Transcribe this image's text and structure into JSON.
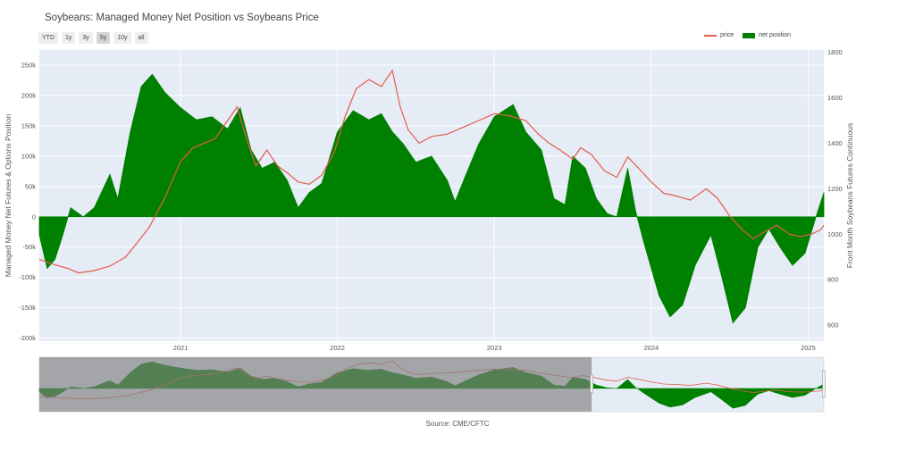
{
  "title": "Soybeans: Managed Money Net Position vs Soybeans Price",
  "range_buttons": [
    {
      "label": "YTD",
      "active": false
    },
    {
      "label": "1y",
      "active": false
    },
    {
      "label": "3y",
      "active": false
    },
    {
      "label": "5y",
      "active": true
    },
    {
      "label": "10y",
      "active": false
    },
    {
      "label": "all",
      "active": false
    }
  ],
  "legend": {
    "price": "price",
    "net_position": "net position"
  },
  "source": "Source: CME/CFTC",
  "colors": {
    "price": "#e45c4a",
    "net_position": "#008000",
    "plot_bg": "#e5ecf6",
    "grid": "#ffffff",
    "selector_shade": "#7f7f7f"
  },
  "chart_data": {
    "type": "area",
    "title": "Soybeans: Managed Money Net Position vs Soybeans Price",
    "ylabel": "Managed Money Net Futures & Options Position",
    "y2label": "Front Month Soybeans Futures Continuous",
    "ylim": [
      -205000,
      275000
    ],
    "y2lim": [
      530,
      1810
    ],
    "xlim": [
      2020.1,
      2025.1
    ],
    "x_ticks": [
      "2021",
      "2022",
      "2023",
      "2024",
      "2025"
    ],
    "y_ticks": [
      "250k",
      "200k",
      "150k",
      "100k",
      "50k",
      "0",
      "-50k",
      "-100k",
      "-150k",
      "-200k"
    ],
    "y2_ticks": [
      "1800",
      "1600",
      "1400",
      "1200",
      "1000",
      "800",
      "600"
    ],
    "grid": true,
    "legend_position": "top-right",
    "series": [
      {
        "name": "net position",
        "axis": "left",
        "style": "filled-area",
        "points": [
          [
            2020.1,
            -30000
          ],
          [
            2020.15,
            -85000
          ],
          [
            2020.2,
            -70000
          ],
          [
            2020.25,
            -30000
          ],
          [
            2020.3,
            15000
          ],
          [
            2020.38,
            0
          ],
          [
            2020.45,
            15000
          ],
          [
            2020.55,
            70000
          ],
          [
            2020.6,
            30000
          ],
          [
            2020.68,
            140000
          ],
          [
            2020.75,
            215000
          ],
          [
            2020.82,
            235000
          ],
          [
            2020.9,
            205000
          ],
          [
            2021.0,
            180000
          ],
          [
            2021.1,
            160000
          ],
          [
            2021.2,
            165000
          ],
          [
            2021.3,
            145000
          ],
          [
            2021.38,
            180000
          ],
          [
            2021.45,
            110000
          ],
          [
            2021.52,
            80000
          ],
          [
            2021.6,
            90000
          ],
          [
            2021.68,
            60000
          ],
          [
            2021.75,
            15000
          ],
          [
            2021.82,
            40000
          ],
          [
            2021.9,
            55000
          ],
          [
            2022.0,
            140000
          ],
          [
            2022.1,
            175000
          ],
          [
            2022.2,
            160000
          ],
          [
            2022.28,
            170000
          ],
          [
            2022.35,
            140000
          ],
          [
            2022.42,
            120000
          ],
          [
            2022.5,
            90000
          ],
          [
            2022.6,
            100000
          ],
          [
            2022.7,
            60000
          ],
          [
            2022.75,
            25000
          ],
          [
            2022.82,
            70000
          ],
          [
            2022.9,
            120000
          ],
          [
            2023.0,
            165000
          ],
          [
            2023.12,
            185000
          ],
          [
            2023.2,
            140000
          ],
          [
            2023.3,
            110000
          ],
          [
            2023.38,
            30000
          ],
          [
            2023.45,
            20000
          ],
          [
            2023.5,
            100000
          ],
          [
            2023.58,
            80000
          ],
          [
            2023.65,
            30000
          ],
          [
            2023.72,
            5000
          ],
          [
            2023.78,
            0
          ],
          [
            2023.85,
            80000
          ],
          [
            2023.9,
            10000
          ],
          [
            2023.95,
            -40000
          ],
          [
            2024.05,
            -130000
          ],
          [
            2024.12,
            -165000
          ],
          [
            2024.2,
            -145000
          ],
          [
            2024.28,
            -80000
          ],
          [
            2024.38,
            -30000
          ],
          [
            2024.45,
            -100000
          ],
          [
            2024.52,
            -175000
          ],
          [
            2024.6,
            -150000
          ],
          [
            2024.68,
            -50000
          ],
          [
            2024.75,
            -20000
          ],
          [
            2024.82,
            -50000
          ],
          [
            2024.9,
            -80000
          ],
          [
            2024.98,
            -60000
          ],
          [
            2025.05,
            0
          ],
          [
            2025.1,
            40000
          ]
        ]
      },
      {
        "name": "price",
        "axis": "right",
        "style": "line",
        "points": [
          [
            2020.1,
            890
          ],
          [
            2020.18,
            870
          ],
          [
            2020.28,
            850
          ],
          [
            2020.35,
            830
          ],
          [
            2020.45,
            840
          ],
          [
            2020.55,
            860
          ],
          [
            2020.65,
            900
          ],
          [
            2020.72,
            960
          ],
          [
            2020.8,
            1030
          ],
          [
            2020.9,
            1160
          ],
          [
            2021.0,
            1320
          ],
          [
            2021.08,
            1380
          ],
          [
            2021.15,
            1400
          ],
          [
            2021.22,
            1420
          ],
          [
            2021.3,
            1500
          ],
          [
            2021.36,
            1560
          ],
          [
            2021.42,
            1420
          ],
          [
            2021.48,
            1300
          ],
          [
            2021.55,
            1370
          ],
          [
            2021.62,
            1300
          ],
          [
            2021.68,
            1270
          ],
          [
            2021.75,
            1230
          ],
          [
            2021.82,
            1220
          ],
          [
            2021.9,
            1260
          ],
          [
            2021.98,
            1360
          ],
          [
            2022.05,
            1520
          ],
          [
            2022.12,
            1640
          ],
          [
            2022.2,
            1680
          ],
          [
            2022.28,
            1650
          ],
          [
            2022.35,
            1720
          ],
          [
            2022.4,
            1560
          ],
          [
            2022.45,
            1460
          ],
          [
            2022.52,
            1400
          ],
          [
            2022.6,
            1430
          ],
          [
            2022.7,
            1440
          ],
          [
            2022.8,
            1470
          ],
          [
            2022.9,
            1500
          ],
          [
            2023.0,
            1530
          ],
          [
            2023.1,
            1520
          ],
          [
            2023.2,
            1500
          ],
          [
            2023.28,
            1440
          ],
          [
            2023.35,
            1400
          ],
          [
            2023.42,
            1370
          ],
          [
            2023.5,
            1330
          ],
          [
            2023.55,
            1380
          ],
          [
            2023.62,
            1350
          ],
          [
            2023.7,
            1280
          ],
          [
            2023.78,
            1250
          ],
          [
            2023.85,
            1340
          ],
          [
            2023.92,
            1290
          ],
          [
            2024.0,
            1230
          ],
          [
            2024.08,
            1180
          ],
          [
            2024.15,
            1170
          ],
          [
            2024.25,
            1150
          ],
          [
            2024.35,
            1200
          ],
          [
            2024.42,
            1160
          ],
          [
            2024.5,
            1080
          ],
          [
            2024.58,
            1020
          ],
          [
            2024.65,
            980
          ],
          [
            2024.72,
            1010
          ],
          [
            2024.8,
            1040
          ],
          [
            2024.88,
            1000
          ],
          [
            2024.95,
            990
          ],
          [
            2025.02,
            1000
          ],
          [
            2025.08,
            1020
          ],
          [
            2025.1,
            1040
          ]
        ]
      }
    ],
    "range_selector": {
      "selected": [
        2023.62,
        2025.1
      ]
    }
  }
}
